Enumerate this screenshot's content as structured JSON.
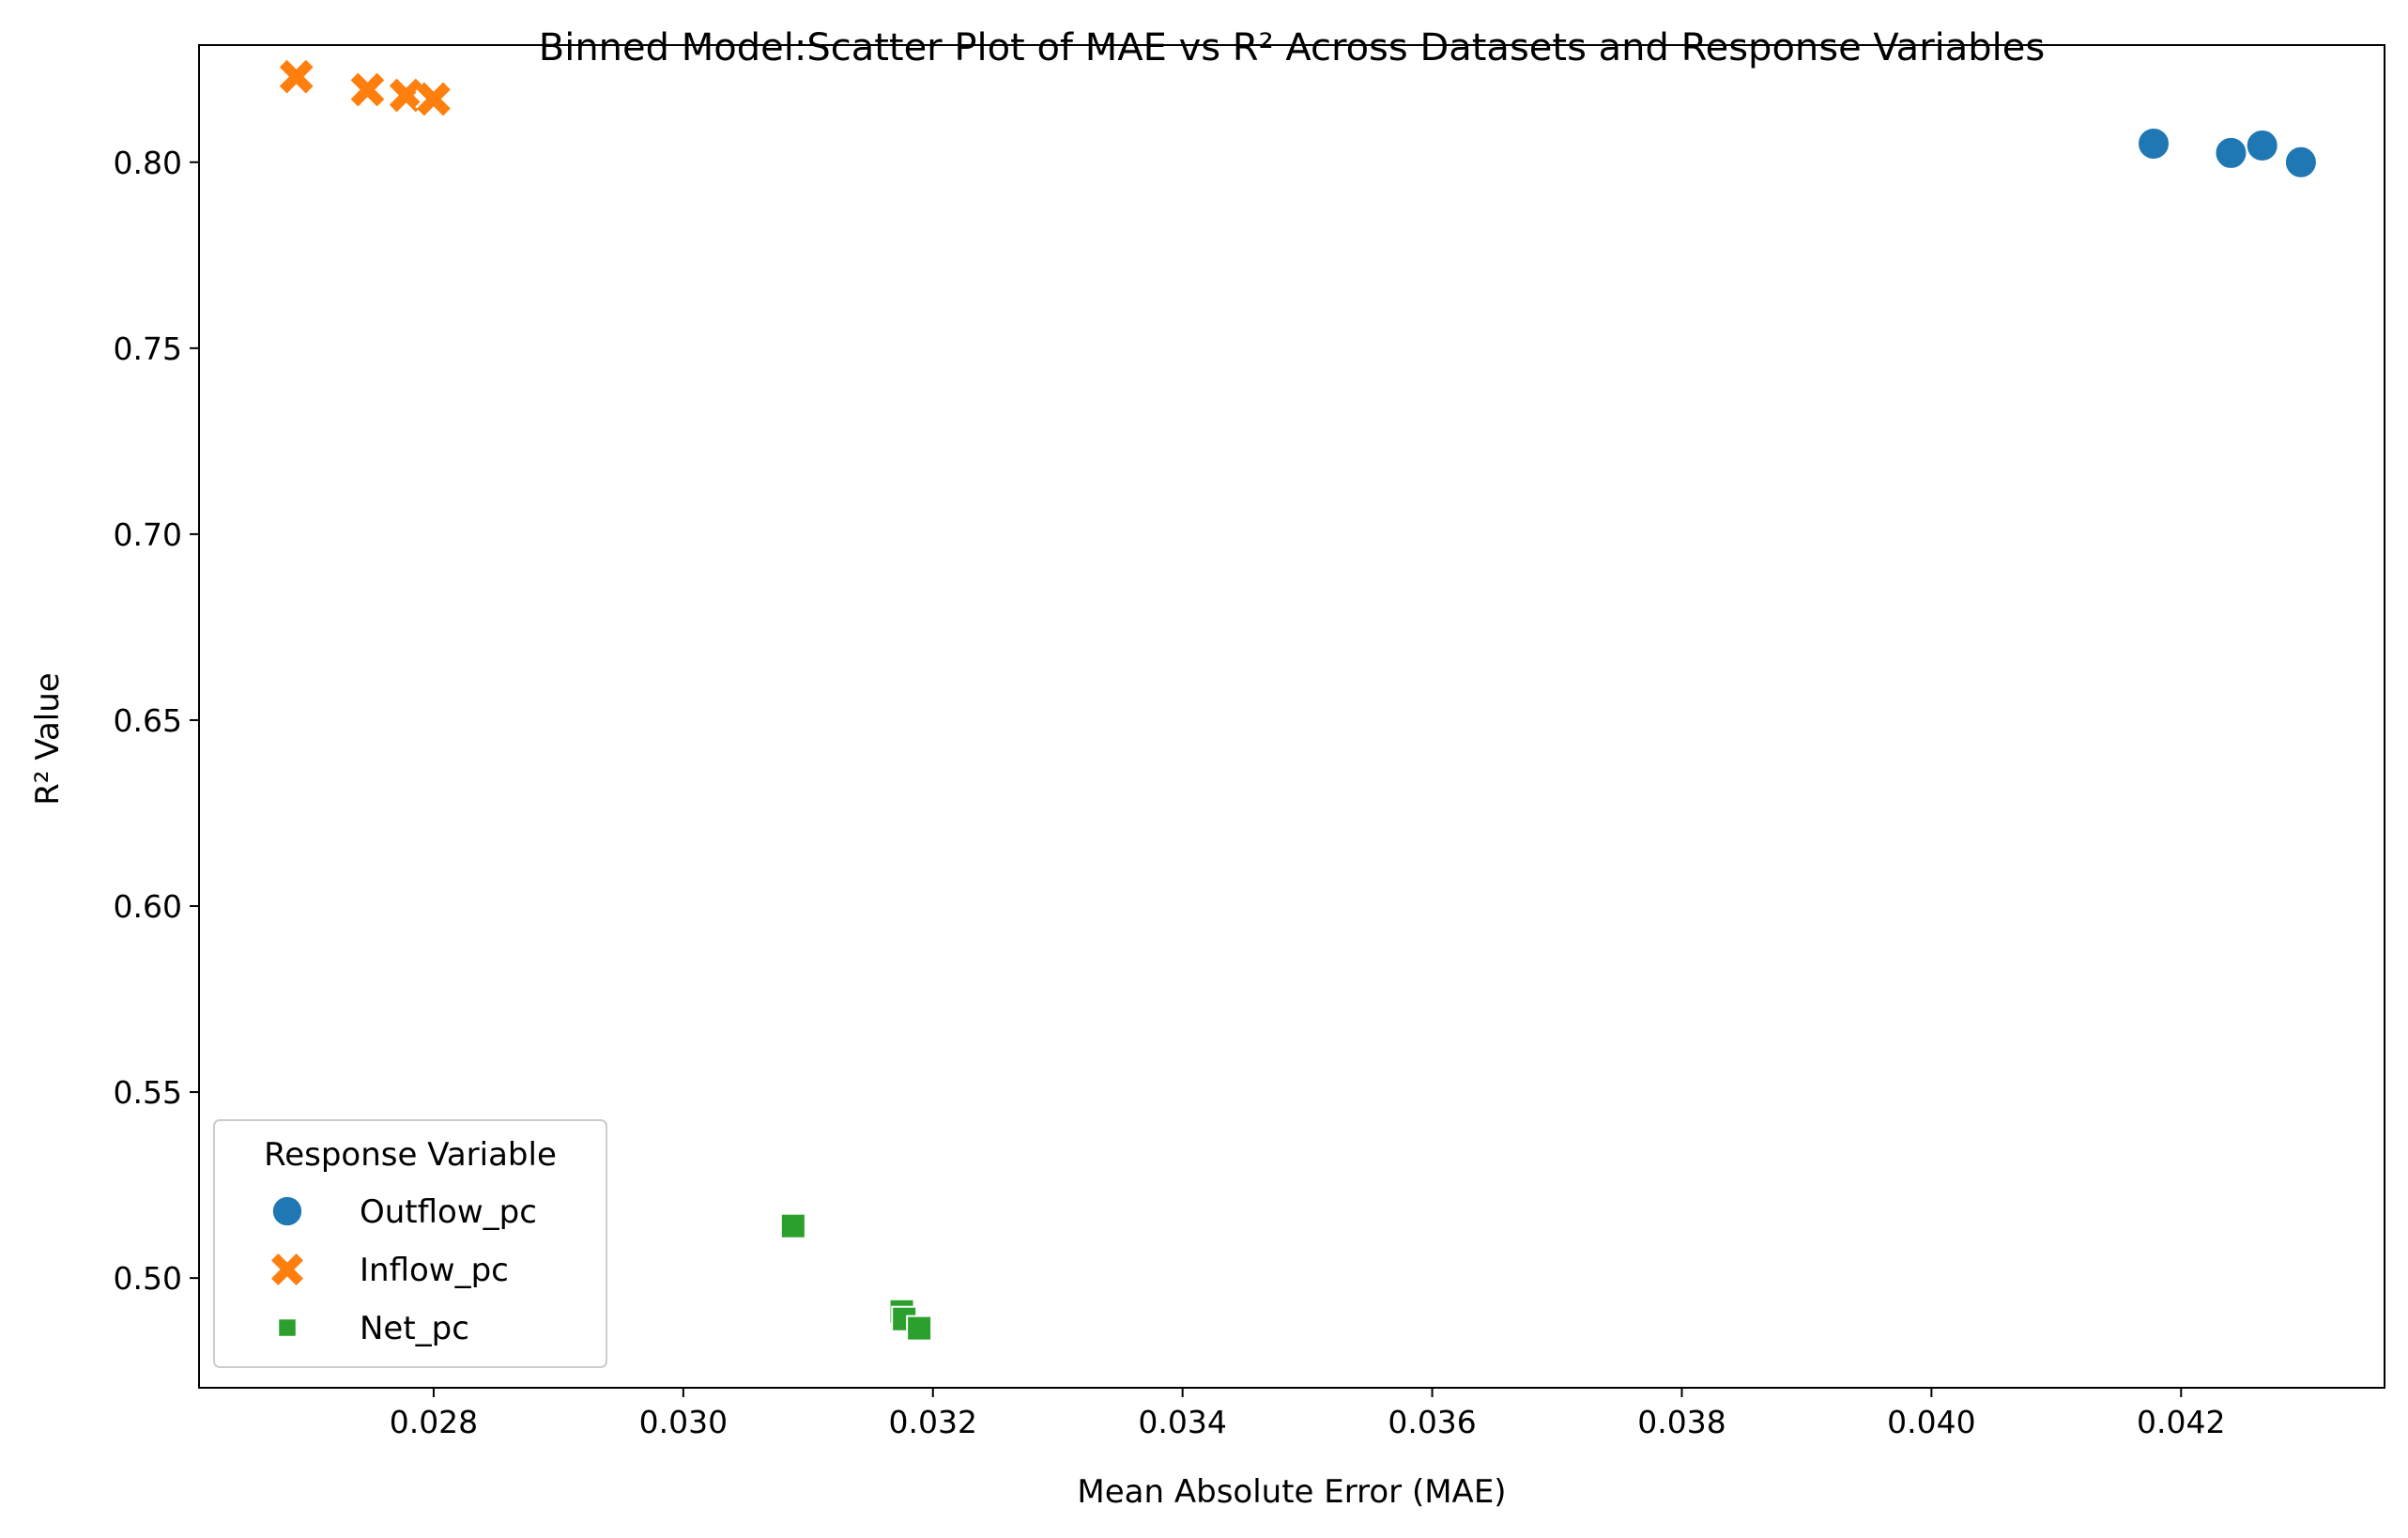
{
  "chart_data": {
    "type": "scatter",
    "title": "Binned Model:Scatter Plot of MAE vs R² Across Datasets and Response Variables",
    "xlabel": "Mean Absolute Error (MAE)",
    "ylabel": "R² Value",
    "xlim": [
      0.02612,
      0.04363
    ],
    "ylim": [
      0.4705,
      0.8315
    ],
    "x_ticks": [
      0.028,
      0.03,
      0.032,
      0.034,
      0.036,
      0.038,
      0.04,
      0.042
    ],
    "x_tick_labels": [
      "0.028",
      "0.030",
      "0.032",
      "0.034",
      "0.036",
      "0.038",
      "0.040",
      "0.042"
    ],
    "y_ticks": [
      0.5,
      0.55,
      0.6,
      0.65,
      0.7,
      0.75,
      0.8
    ],
    "y_tick_labels": [
      "0.50",
      "0.55",
      "0.60",
      "0.65",
      "0.70",
      "0.75",
      "0.80"
    ],
    "grid": false,
    "legend": {
      "title": "Response Variable",
      "placement": "lower-left"
    },
    "series": [
      {
        "name": "Outflow_pc",
        "color": "#1f77b4",
        "marker": "circle",
        "x": [
          0.04178,
          0.0424,
          0.04265,
          0.04296
        ],
        "y": [
          0.805,
          0.8025,
          0.8045,
          0.8
        ]
      },
      {
        "name": "Inflow_pc",
        "color": "#ff7f0e",
        "marker": "x",
        "x": [
          0.0269,
          0.02747,
          0.02778,
          0.028
        ],
        "y": [
          0.823,
          0.8195,
          0.818,
          0.817
        ]
      },
      {
        "name": "Net_pc",
        "color": "#2ca02c",
        "marker": "square",
        "x": [
          0.03088,
          0.03175,
          0.03177,
          0.03189
        ],
        "y": [
          0.514,
          0.491,
          0.489,
          0.4865
        ]
      }
    ]
  }
}
